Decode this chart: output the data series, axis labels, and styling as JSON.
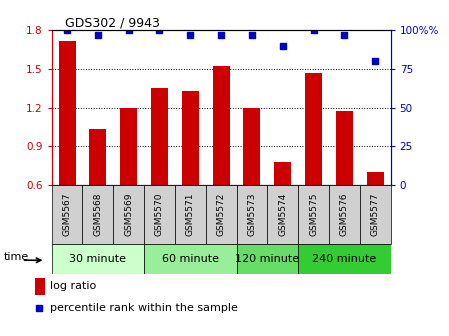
{
  "title": "GDS302 / 9943",
  "samples": [
    "GSM5567",
    "GSM5568",
    "GSM5569",
    "GSM5570",
    "GSM5571",
    "GSM5572",
    "GSM5573",
    "GSM5574",
    "GSM5575",
    "GSM5576",
    "GSM5577"
  ],
  "log_ratios": [
    1.72,
    1.03,
    1.2,
    1.35,
    1.33,
    1.52,
    1.2,
    0.78,
    1.47,
    1.17,
    0.7
  ],
  "percentile_ranks": [
    100,
    97,
    100,
    100,
    97,
    97,
    97,
    90,
    100,
    97,
    80
  ],
  "bar_color": "#cc0000",
  "dot_color": "#0000cc",
  "ylim_left": [
    0.6,
    1.8
  ],
  "ylim_right": [
    0,
    100
  ],
  "yticks_left": [
    0.6,
    0.9,
    1.2,
    1.5,
    1.8
  ],
  "yticks_right": [
    0,
    25,
    50,
    75,
    100
  ],
  "groups": [
    {
      "label": "30 minute",
      "indices": [
        0,
        1,
        2
      ],
      "color": "#ccffcc"
    },
    {
      "label": "60 minute",
      "indices": [
        3,
        4,
        5
      ],
      "color": "#99ee99"
    },
    {
      "label": "120 minute",
      "indices": [
        6,
        7
      ],
      "color": "#66dd66"
    },
    {
      "label": "240 minute",
      "indices": [
        8,
        9,
        10
      ],
      "color": "#33cc33"
    }
  ],
  "time_label": "time",
  "legend_log_ratio": "log ratio",
  "legend_percentile": "percentile rank within the sample",
  "bar_bottom": 0.6,
  "left_axis_color": "#cc0000",
  "right_axis_color": "#0000cc",
  "sample_box_color": "#d0d0d0",
  "title_fontsize": 9,
  "tick_fontsize": 7.5,
  "group_fontsize": 8,
  "legend_fontsize": 8
}
